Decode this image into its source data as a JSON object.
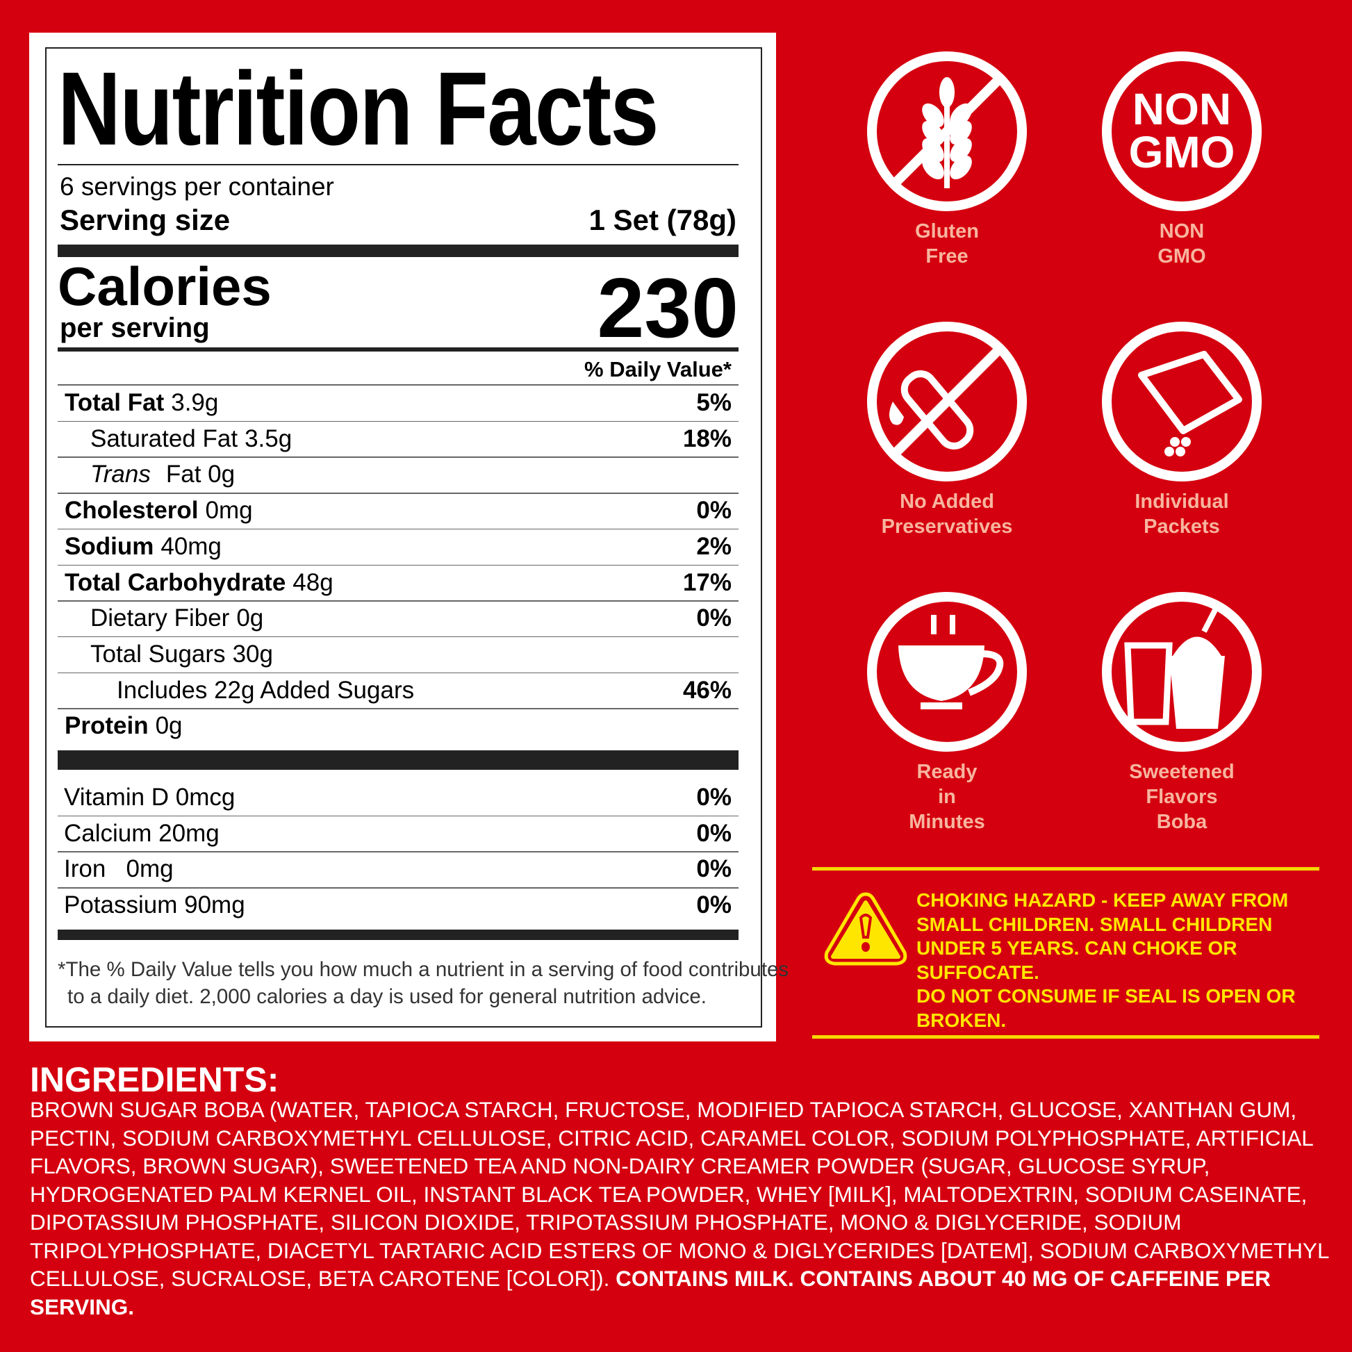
{
  "nutrition": {
    "title": "Nutrition Facts",
    "servings": "6 servings per container",
    "serving_size_label": "Serving size",
    "serving_size_value": "1 Set (78g)",
    "calories_label": "Calories",
    "per_serving": "per serving",
    "calories_value": "230",
    "dv_header": "% Daily Value*",
    "rows": [
      {
        "name": "Total Fat",
        "amount": "3.9g",
        "dv": "5%",
        "bold": true,
        "indent": 0
      },
      {
        "name": "Saturated Fat",
        "amount": "3.5g",
        "dv": "18%",
        "bold": false,
        "indent": 1
      },
      {
        "name": "Trans",
        "amount": "Fat 0g",
        "dv": "",
        "bold": false,
        "indent": 1
      },
      {
        "name": "Cholesterol",
        "amount": "0mg",
        "dv": "0%",
        "bold": true,
        "indent": 0
      },
      {
        "name": "Sodium",
        "amount": "40mg",
        "dv": "2%",
        "bold": true,
        "indent": 0
      },
      {
        "name": "Total Carbohydrate",
        "amount": "48g",
        "dv": "17%",
        "bold": true,
        "indent": 0
      },
      {
        "name": "Dietary Fiber",
        "amount": "0g",
        "dv": "0%",
        "bold": false,
        "indent": 1
      },
      {
        "name": "Total Sugars",
        "amount": "30g",
        "dv": "",
        "bold": false,
        "indent": 1
      },
      {
        "name": "Includes 22g Added Sugars",
        "amount": "",
        "dv": "46%",
        "bold": false,
        "indent": 2
      },
      {
        "name": "Protein",
        "amount": "0g",
        "dv": "",
        "bold": true,
        "indent": 0
      }
    ],
    "vitamins": [
      {
        "name": "Vitamin D 0mcg",
        "dv": "0%"
      },
      {
        "name": "Calcium 20mg",
        "dv": "0%"
      },
      {
        "name": "Iron   0mg",
        "dv": "0%"
      },
      {
        "name": "Potassium 90mg",
        "dv": "0%"
      }
    ],
    "footnote_1": "*The % Daily Value tells you how much a nutrient in a serving of food contributes",
    "footnote_2": "to a daily diet. 2,000 calories a day is used for general nutrition advice."
  },
  "badges": [
    {
      "icon": "gluten-free-wheat-icon",
      "line1": "Gluten",
      "line2": "Free",
      "line3": ""
    },
    {
      "icon": "non-gmo-icon",
      "line1": "NON",
      "line2": "GMO",
      "line3": "",
      "text1": "NON",
      "text2": "GMO"
    },
    {
      "icon": "no-preservatives-test-tube-icon",
      "line1": "No Added",
      "line2": "Preservatives",
      "line3": ""
    },
    {
      "icon": "individual-packet-icon",
      "line1": "Individual",
      "line2": "Packets",
      "line3": ""
    },
    {
      "icon": "hot-cup-icon",
      "line1": "Ready",
      "line2": "in",
      "line3": "Minutes"
    },
    {
      "icon": "boba-drink-icon",
      "line1": "Sweetened",
      "line2": "Flavors",
      "line3": "Boba"
    }
  ],
  "warning": {
    "icon": "warning-triangle-icon",
    "lines": [
      "CHOKING HAZARD - KEEP AWAY FROM",
      "SMALL CHILDREN. SMALL CHILDREN",
      "UNDER 5 YEARS. CAN CHOKE OR",
      "SUFFOCATE.",
      "DO NOT CONSUME IF SEAL IS OPEN OR",
      "BROKEN."
    ]
  },
  "ingredients": {
    "title": "INGREDIENTS:",
    "body": "BROWN SUGAR BOBA (WATER, TAPIOCA STARCH, FRUCTOSE, MODIFIED TAPIOCA STARCH, GLUCOSE, XANTHAN GUM, PECTIN, SODIUM CARBOXYMETHYL CELLULOSE, CITRIC ACID, CARAMEL COLOR, SODIUM POLYPHOSPHATE, ARTIFICIAL FLAVORS, BROWN SUGAR), SWEETENED TEA AND NON-DAIRY CREAMER POWDER (SUGAR, GLUCOSE SYRUP, HYDROGENATED PALM KERNEL OIL, INSTANT BLACK TEA POWDER, WHEY [MILK], MALTODEXTRIN, SODIUM CASEINATE, DIPOTASSIUM PHOSPHATE, SILICON DIOXIDE, TRIPOTASSIUM PHOSPHATE, MONO & DIGLYCERIDE, SODIUM TRIPOLYPHOSPHATE, DIACETYL TARTARIC ACID ESTERS OF MONO & DIGLYCERIDES [DATEM], SODIUM CARBOXYMETHYL CELLULOSE, SUCRALOSE, BETA CAROTENE [COLOR]).",
    "bold": " CONTAINS MILK. CONTAINS ABOUT 40 MG OF CAFFEINE PER SERVING."
  },
  "colors": {
    "background": "#d5000f",
    "badge_label": "#f7b59f",
    "warning": "#ffe600"
  }
}
